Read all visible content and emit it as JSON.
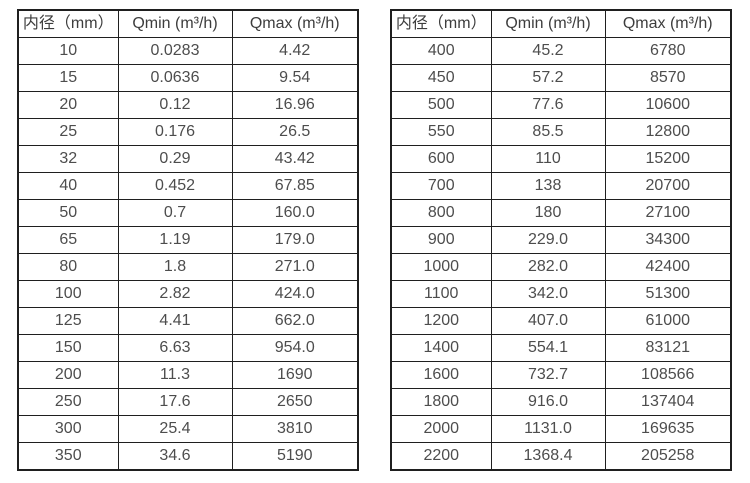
{
  "page": {
    "background": "#ffffff"
  },
  "colors": {
    "border": "#1f1f1f",
    "header_text": "#3d3d3d",
    "cell_text": "#4d4d4d"
  },
  "tables": [
    {
      "title": "small-diameter-flow-ranges",
      "columns": [
        "内径（mm）",
        "Qmin (m³/h)",
        "Qmax (m³/h)"
      ],
      "rows": [
        [
          "10",
          "0.0283",
          "4.42"
        ],
        [
          "15",
          "0.0636",
          "9.54"
        ],
        [
          "20",
          "0.12",
          "16.96"
        ],
        [
          "25",
          "0.176",
          "26.5"
        ],
        [
          "32",
          "0.29",
          "43.42"
        ],
        [
          "40",
          "0.452",
          "67.85"
        ],
        [
          "50",
          "0.7",
          "160.0"
        ],
        [
          "65",
          "1.19",
          "179.0"
        ],
        [
          "80",
          "1.8",
          "271.0"
        ],
        [
          "100",
          "2.82",
          "424.0"
        ],
        [
          "125",
          "4.41",
          "662.0"
        ],
        [
          "150",
          "6.63",
          "954.0"
        ],
        [
          "200",
          "11.3",
          "1690"
        ],
        [
          "250",
          "17.6",
          "2650"
        ],
        [
          "300",
          "25.4",
          "3810"
        ],
        [
          "350",
          "34.6",
          "5190"
        ]
      ]
    },
    {
      "title": "large-diameter-flow-ranges",
      "columns": [
        "内径（mm）",
        "Qmin (m³/h)",
        "Qmax (m³/h)"
      ],
      "rows": [
        [
          "400",
          "45.2",
          "6780"
        ],
        [
          "450",
          "57.2",
          "8570"
        ],
        [
          "500",
          "77.6",
          "10600"
        ],
        [
          "550",
          "85.5",
          "12800"
        ],
        [
          "600",
          "110",
          "15200"
        ],
        [
          "700",
          "138",
          "20700"
        ],
        [
          "800",
          "180",
          "27100"
        ],
        [
          "900",
          "229.0",
          "34300"
        ],
        [
          "1000",
          "282.0",
          "42400"
        ],
        [
          "1100",
          "342.0",
          "51300"
        ],
        [
          "1200",
          "407.0",
          "61000"
        ],
        [
          "1400",
          "554.1",
          "83121"
        ],
        [
          "1600",
          "732.7",
          "108566"
        ],
        [
          "1800",
          "916.0",
          "137404"
        ],
        [
          "2000",
          "1131.0",
          "169635"
        ],
        [
          "2200",
          "1368.4",
          "205258"
        ]
      ]
    }
  ]
}
